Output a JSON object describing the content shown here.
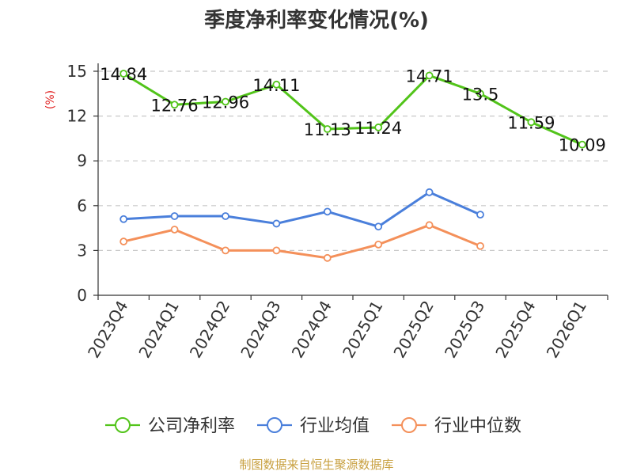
{
  "chart_data": {
    "type": "line",
    "title": "季度净利率变化情况(%)",
    "ylabel": "(%)",
    "xlabel": "",
    "categories": [
      "2023Q4",
      "2024Q1",
      "2024Q2",
      "2024Q3",
      "2024Q4",
      "2025Q1",
      "2025Q2",
      "2025Q3",
      "2025Q4",
      "2026Q1"
    ],
    "ylim": [
      0,
      15
    ],
    "yticks": [
      0,
      3,
      6,
      9,
      12,
      15
    ],
    "grid": "horizontal dashed",
    "legend_position": "bottom",
    "series": [
      {
        "name": "公司净利率",
        "color": "#52c41a",
        "values": [
          14.84,
          12.76,
          12.96,
          14.11,
          11.13,
          11.24,
          14.71,
          13.5,
          11.59,
          10.09
        ],
        "labels": [
          "14.84",
          "12.76",
          "12.96",
          "14.11",
          "11.13",
          "11.24",
          "14.71",
          "13.5",
          "11.59",
          "10.09"
        ]
      },
      {
        "name": "行业均值",
        "color": "#4a7fdb",
        "values": [
          5.1,
          5.3,
          5.3,
          4.8,
          5.6,
          4.6,
          6.9,
          5.4,
          null,
          null
        ]
      },
      {
        "name": "行业中位数",
        "color": "#f4905a",
        "values": [
          3.6,
          4.4,
          3.0,
          3.0,
          2.5,
          3.4,
          4.7,
          3.3,
          null,
          null
        ]
      }
    ],
    "source": "制图数据来自恒生聚源数据库"
  }
}
